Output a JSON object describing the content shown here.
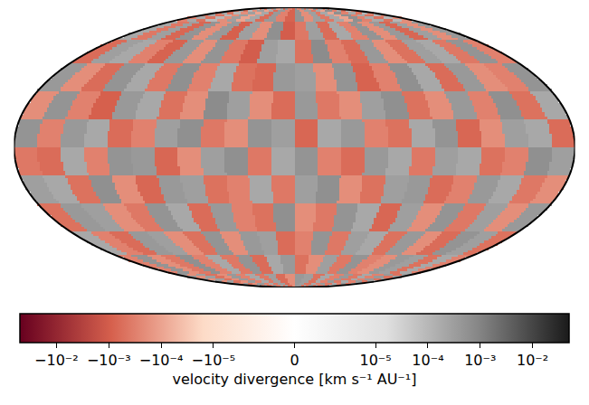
{
  "chart_data": {
    "type": "heatmap",
    "tick_labels": false,
    "colors": [
      "#67001f",
      "#d6604d",
      "#fddbc7",
      "#ffffff",
      "#e0e0e0",
      "#878787",
      "#1a1a1a"
    ],
    "colorbar": {
      "title": "velocity divergence [km s⁻¹ AU⁻¹]",
      "range": [
        -0.05,
        0.05
      ],
      "linthresh": 1e-05,
      "ticks": [
        {
          "value": -0.01,
          "label": "−10⁻²"
        },
        {
          "value": -0.001,
          "label": "−10⁻³"
        },
        {
          "value": -0.0001,
          "label": "−10⁻⁴"
        },
        {
          "value": -1e-05,
          "label": "−10⁻⁵"
        },
        0,
        {
          "value": 1e-05,
          "label": "10⁻⁵"
        },
        {
          "value": 0.0001,
          "label": "10⁻⁴"
        },
        {
          "value": 0.001,
          "label": "10⁻³"
        },
        {
          "value": 0.01,
          "label": "10⁻²"
        }
      ]
    },
    "cells": [
      [
        -0.0003,
        0.0002,
        -0.0005,
        0.0001,
        -0.0002,
        0.0003,
        -0.0001,
        0.0002,
        -0.0006,
        0.0004,
        -0.0003,
        -0.0008,
        0.0005,
        -0.0002,
        0.0003,
        -0.0004,
        0.0002,
        -0.0001,
        0.0006,
        -0.0003,
        0.0002,
        -0.0005,
        0.0001,
        -0.0002
      ],
      [
        0.0002,
        -0.0004,
        0.0003,
        -0.0007,
        0.0005,
        -0.0002,
        0.0004,
        -0.0009,
        0.0003,
        -0.0002,
        0.0006,
        -0.001,
        -0.0004,
        0.0003,
        -0.0006,
        0.0002,
        -0.0003,
        0.0005,
        -0.0002,
        0.0004,
        -0.0007,
        0.0003,
        -0.0002,
        0.0004
      ],
      [
        -0.0006,
        0.0003,
        0.0002,
        -0.0003,
        -0.0008,
        0.0004,
        -0.0002,
        0.0005,
        -0.0004,
        -0.001,
        0.0003,
        0.0002,
        -0.0005,
        0.0007,
        -0.0003,
        -0.0006,
        0.0004,
        -0.0002,
        -0.0005,
        0.0003,
        0.0002,
        -0.0004,
        0.0005,
        -0.0003
      ],
      [
        0.0004,
        -0.0002,
        -0.0006,
        0.0005,
        0.0002,
        -0.0004,
        0.0006,
        -0.0003,
        0.0002,
        -0.0005,
        -0.0007,
        0.0004,
        0.0003,
        -0.0002,
        0.0005,
        -0.0008,
        -0.0003,
        0.0006,
        0.0002,
        -0.0006,
        0.0004,
        -0.0002,
        -0.0003,
        0.0005
      ],
      [
        -0.0002,
        0.0005,
        -0.0003,
        -0.0009,
        0.0004,
        0.0002,
        -0.0005,
        -0.0002,
        0.0007,
        0.0003,
        -0.0002,
        -0.0006,
        0.0004,
        -0.0004,
        -0.0002,
        0.0003,
        0.0006,
        -0.0005,
        -0.0002,
        0.0004,
        -0.0003,
        0.0006,
        -0.0005,
        0.0002
      ],
      [
        0.0005,
        -0.0003,
        0.0004,
        0.0002,
        -0.0006,
        -0.0003,
        0.0003,
        0.0006,
        -0.0004,
        -0.0002,
        0.0005,
        0.0003,
        -0.0007,
        0.0002,
        0.0004,
        -0.0003,
        -0.0005,
        0.0002,
        0.0005,
        -0.0007,
        -0.0002,
        0.0003,
        0.0002,
        -0.0006
      ],
      [
        -0.0004,
        -0.0006,
        0.0002,
        -0.0003,
        0.0005,
        0.0004,
        -0.0007,
        -0.0002,
        0.0003,
        0.0006,
        -0.0004,
        0.0002,
        0.0005,
        -0.0003,
        -0.0006,
        0.0004,
        0.0002,
        -0.0004,
        0.0003,
        0.0002,
        -0.0005,
        -0.0003,
        0.0006,
        0.0003
      ],
      [
        0.0003,
        0.0002,
        -0.0005,
        0.0006,
        -0.0002,
        -0.0007,
        0.0004,
        0.0003,
        -0.0005,
        -0.0003,
        0.0002,
        -0.0004,
        0.0003,
        0.0006,
        -0.0002,
        -0.0005,
        0.0003,
        0.0004,
        -0.0006,
        -0.0003,
        0.0004,
        0.0002,
        -0.0004,
        -0.0002
      ],
      [
        -0.0005,
        0.0004,
        0.0003,
        -0.0002,
        -0.0004,
        0.0005,
        0.0002,
        -0.0006,
        0.0004,
        -0.0003,
        -0.0005,
        0.0006,
        -0.0002,
        -0.0004,
        0.0005,
        0.0002,
        -0.0007,
        0.0003,
        -0.0002,
        0.0005,
        -0.0004,
        0.0003,
        -0.0002,
        0.0004
      ],
      [
        0.0002,
        -0.0003,
        -0.0006,
        0.0004,
        0.0003,
        -0.0002,
        -0.0005,
        0.0005,
        -0.0002,
        0.0004,
        0.0003,
        -0.0006,
        -0.0003,
        0.0005,
        -0.0004,
        0.0003,
        0.0002,
        -0.0005,
        0.0004,
        -0.0002,
        -0.0006,
        0.0005,
        0.0003,
        -0.0005
      ],
      [
        -0.0003,
        0.0005,
        -0.0002,
        -0.0004,
        0.0006,
        -0.0003,
        0.0002,
        -0.0004,
        0.0005,
        -0.0006,
        0.0002,
        0.0004,
        -0.0005,
        -0.0002,
        0.0003,
        -0.0004,
        0.0005,
        -0.0003,
        -0.0002,
        0.0004,
        0.0003,
        -0.0005,
        0.0002,
        -0.0003
      ],
      [
        0.0004,
        -0.0002,
        0.0003,
        -0.0005,
        -0.0002,
        0.0004,
        -0.0003,
        0.0002,
        -0.0004,
        0.0003,
        -0.0006,
        -0.0002,
        0.0004,
        0.0003,
        -0.0005,
        0.0002,
        -0.0003,
        0.0004,
        -0.0004,
        0.0002,
        -0.0003,
        0.0004,
        -0.0005,
        0.0003
      ]
    ]
  }
}
